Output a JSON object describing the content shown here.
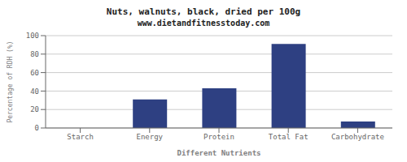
{
  "chart_data": {
    "type": "bar",
    "title": "Nuts, walnuts, black, dried per 100g",
    "subtitle": "www.dietandfitnesstoday.com",
    "xlabel": "Different Nutrients",
    "ylabel": "Percentage of RDH (%)",
    "categories": [
      "Starch",
      "Energy",
      "Protein",
      "Total Fat",
      "Carbohydrate"
    ],
    "values": [
      0,
      31,
      43,
      91,
      7
    ],
    "color": "#2e4082",
    "ylim": [
      0,
      100
    ],
    "yticks": [
      0,
      20,
      40,
      60,
      80,
      100
    ],
    "grid": true
  }
}
